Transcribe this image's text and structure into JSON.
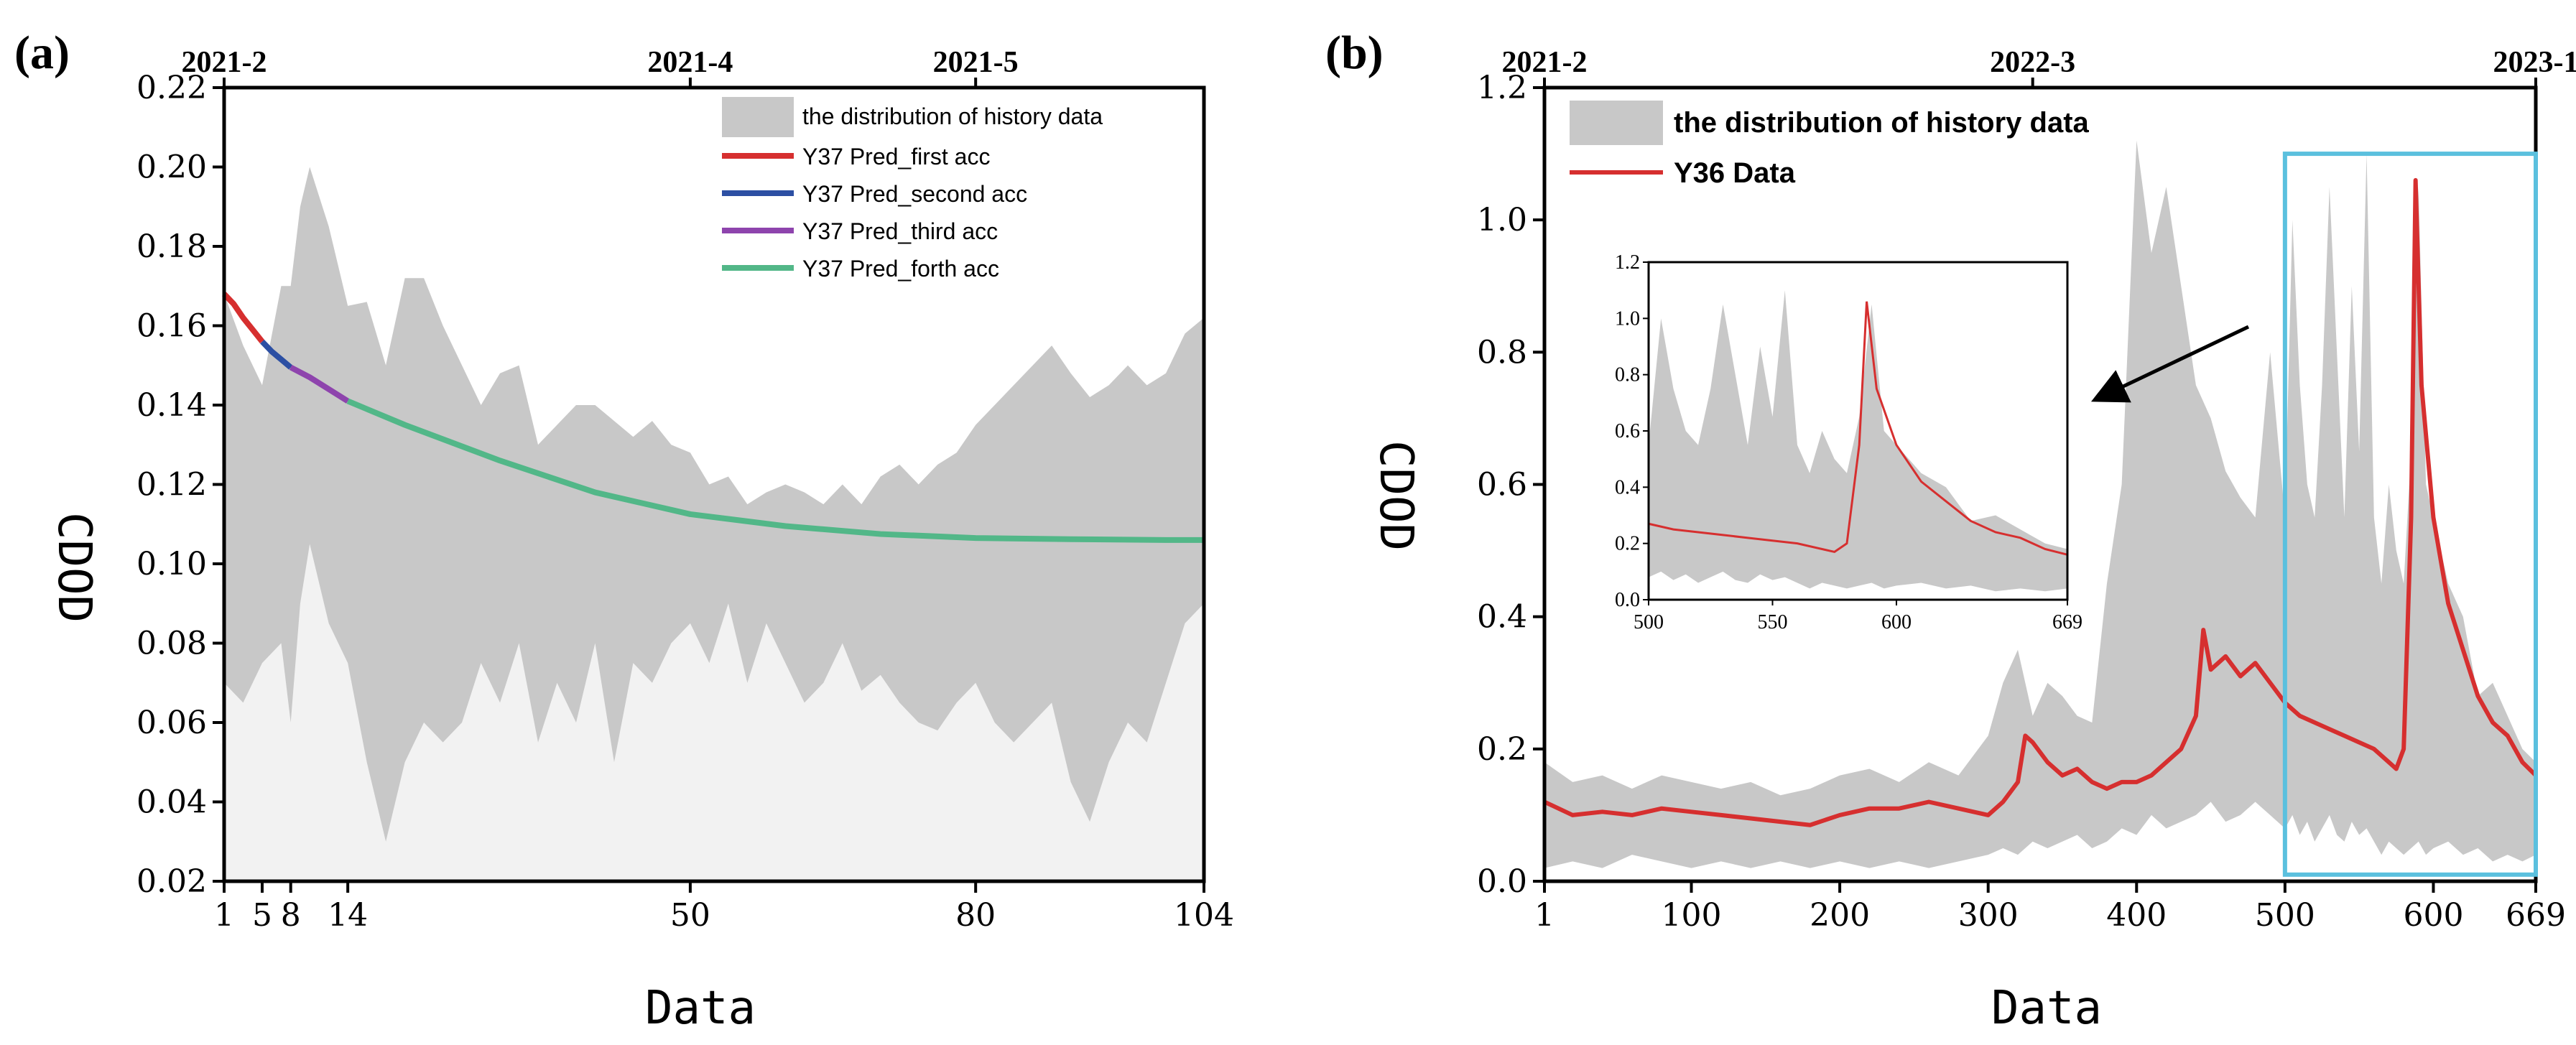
{
  "chart_data": [
    {
      "panel": "(a)",
      "type": "area",
      "xlabel": "Data",
      "ylabel": "CDOD",
      "xlim": [
        1,
        104
      ],
      "ylim": [
        0.02,
        0.22
      ],
      "x_ticks": [
        1,
        5,
        8,
        14,
        50,
        80,
        104
      ],
      "y_ticks": [
        "0.02",
        "0.04",
        "0.06",
        "0.08",
        "0.10",
        "0.12",
        "0.14",
        "0.16",
        "0.18",
        "0.20",
        "0.22"
      ],
      "top_ticks": [
        {
          "x": 1,
          "label": "2021-2"
        },
        {
          "x": 50,
          "label": "2021-4"
        },
        {
          "x": 80,
          "label": "2021-5"
        }
      ],
      "legend": {
        "position": "top-right",
        "entries": [
          {
            "label": "the distribution of history data",
            "color": "#c8c8c8",
            "kind": "patch"
          },
          {
            "label": "Y37 Pred_first acc",
            "color": "#d62f2f",
            "kind": "line"
          },
          {
            "label": "Y37 Pred_second acc",
            "color": "#2c4fa3",
            "kind": "line"
          },
          {
            "label": "Y37 Pred_third acc",
            "color": "#8e44ad",
            "kind": "line"
          },
          {
            "label": "Y37 Pred_forth acc",
            "color": "#52b788",
            "kind": "line"
          }
        ]
      },
      "distribution": {
        "x": [
          1,
          3,
          5,
          7,
          8,
          9,
          10,
          12,
          14,
          16,
          18,
          20,
          22,
          24,
          26,
          28,
          30,
          32,
          34,
          36,
          38,
          40,
          42,
          44,
          46,
          48,
          50,
          52,
          54,
          56,
          58,
          60,
          62,
          64,
          66,
          68,
          70,
          72,
          74,
          76,
          78,
          80,
          82,
          84,
          86,
          88,
          90,
          92,
          94,
          96,
          98,
          100,
          102,
          104
        ],
        "upper": [
          0.168,
          0.155,
          0.145,
          0.17,
          0.17,
          0.19,
          0.2,
          0.185,
          0.165,
          0.166,
          0.15,
          0.172,
          0.172,
          0.16,
          0.15,
          0.14,
          0.148,
          0.15,
          0.13,
          0.135,
          0.14,
          0.14,
          0.136,
          0.132,
          0.136,
          0.13,
          0.128,
          0.12,
          0.122,
          0.115,
          0.118,
          0.12,
          0.118,
          0.115,
          0.12,
          0.115,
          0.122,
          0.125,
          0.12,
          0.125,
          0.128,
          0.135,
          0.14,
          0.145,
          0.15,
          0.155,
          0.148,
          0.142,
          0.145,
          0.15,
          0.145,
          0.148,
          0.158,
          0.162
        ],
        "lower": [
          0.07,
          0.065,
          0.075,
          0.08,
          0.06,
          0.09,
          0.105,
          0.085,
          0.075,
          0.05,
          0.03,
          0.05,
          0.06,
          0.055,
          0.06,
          0.075,
          0.065,
          0.08,
          0.055,
          0.07,
          0.06,
          0.08,
          0.05,
          0.075,
          0.07,
          0.08,
          0.085,
          0.075,
          0.09,
          0.07,
          0.085,
          0.075,
          0.065,
          0.07,
          0.08,
          0.068,
          0.072,
          0.065,
          0.06,
          0.058,
          0.065,
          0.07,
          0.06,
          0.055,
          0.06,
          0.065,
          0.045,
          0.035,
          0.05,
          0.06,
          0.055,
          0.07,
          0.085,
          0.09
        ]
      },
      "series": [
        {
          "name": "Y37 Pred_first acc",
          "color": "#d62f2f",
          "x": [
            1,
            2,
            3,
            4,
            5
          ],
          "y": [
            0.168,
            0.1655,
            0.162,
            0.159,
            0.156
          ]
        },
        {
          "name": "Y37 Pred_second acc",
          "color": "#2c4fa3",
          "x": [
            5,
            6,
            7,
            8
          ],
          "y": [
            0.156,
            0.1535,
            0.1515,
            0.1495
          ]
        },
        {
          "name": "Y37 Pred_third acc",
          "color": "#8e44ad",
          "x": [
            8,
            10,
            12,
            14
          ],
          "y": [
            0.1495,
            0.147,
            0.144,
            0.141
          ]
        },
        {
          "name": "Y37 Pred_forth acc",
          "color": "#52b788",
          "x": [
            14,
            20,
            30,
            40,
            50,
            60,
            70,
            80,
            90,
            100,
            104
          ],
          "y": [
            0.141,
            0.135,
            0.126,
            0.118,
            0.1125,
            0.1095,
            0.1075,
            0.1065,
            0.1062,
            0.106,
            0.106
          ]
        }
      ]
    },
    {
      "panel": "(b)",
      "type": "area",
      "xlabel": "Data",
      "ylabel": "CDOD",
      "xlim": [
        1,
        669
      ],
      "ylim": [
        0.0,
        1.2
      ],
      "x_ticks": [
        1,
        100,
        200,
        300,
        400,
        500,
        600,
        669
      ],
      "y_ticks": [
        "0.0",
        "0.2",
        "0.4",
        "0.6",
        "0.8",
        "1.0",
        "1.2"
      ],
      "top_ticks": [
        {
          "x": 1,
          "label": "2021-2"
        },
        {
          "x": 330,
          "label": "2022-3"
        },
        {
          "x": 669,
          "label": "2023-1"
        }
      ],
      "legend": {
        "position": "top-left",
        "entries": [
          {
            "label": "the distribution of history data",
            "color": "#c8c8c8",
            "kind": "patch"
          },
          {
            "label": "Y36 Data",
            "color": "#d62f2f",
            "kind": "line"
          }
        ]
      },
      "highlight_box": {
        "x_range": [
          500,
          669
        ],
        "y_range": [
          0.01,
          1.1
        ],
        "color": "#5bc0de"
      },
      "distribution": {
        "x": [
          1,
          20,
          40,
          60,
          80,
          100,
          120,
          140,
          160,
          180,
          200,
          220,
          240,
          260,
          280,
          300,
          310,
          320,
          330,
          340,
          350,
          360,
          370,
          380,
          390,
          400,
          410,
          420,
          430,
          440,
          450,
          460,
          470,
          480,
          490,
          500,
          505,
          510,
          515,
          520,
          525,
          530,
          535,
          540,
          545,
          550,
          555,
          560,
          565,
          570,
          575,
          580,
          585,
          590,
          595,
          600,
          610,
          620,
          630,
          640,
          650,
          660,
          669
        ],
        "upper": [
          0.18,
          0.15,
          0.16,
          0.14,
          0.16,
          0.15,
          0.14,
          0.15,
          0.13,
          0.14,
          0.16,
          0.17,
          0.15,
          0.18,
          0.16,
          0.22,
          0.3,
          0.35,
          0.25,
          0.3,
          0.28,
          0.25,
          0.24,
          0.45,
          0.6,
          1.12,
          0.95,
          1.05,
          0.9,
          0.75,
          0.7,
          0.62,
          0.58,
          0.55,
          0.8,
          0.55,
          1.0,
          0.75,
          0.6,
          0.55,
          0.75,
          1.05,
          0.8,
          0.55,
          0.9,
          0.65,
          1.1,
          0.55,
          0.45,
          0.6,
          0.5,
          0.45,
          0.65,
          1.05,
          0.6,
          0.55,
          0.45,
          0.4,
          0.28,
          0.3,
          0.25,
          0.2,
          0.18
        ],
        "lower": [
          0.02,
          0.03,
          0.02,
          0.04,
          0.03,
          0.02,
          0.03,
          0.02,
          0.03,
          0.02,
          0.03,
          0.02,
          0.03,
          0.02,
          0.03,
          0.04,
          0.05,
          0.04,
          0.06,
          0.05,
          0.06,
          0.07,
          0.05,
          0.06,
          0.08,
          0.07,
          0.1,
          0.08,
          0.09,
          0.1,
          0.12,
          0.09,
          0.1,
          0.12,
          0.1,
          0.08,
          0.1,
          0.07,
          0.09,
          0.06,
          0.08,
          0.1,
          0.07,
          0.06,
          0.09,
          0.07,
          0.08,
          0.06,
          0.04,
          0.06,
          0.05,
          0.04,
          0.05,
          0.06,
          0.04,
          0.05,
          0.06,
          0.04,
          0.05,
          0.03,
          0.04,
          0.03,
          0.04
        ]
      },
      "series": [
        {
          "name": "Y36 Data",
          "color": "#d62f2f",
          "x": [
            1,
            20,
            40,
            60,
            80,
            100,
            120,
            140,
            160,
            180,
            200,
            220,
            240,
            260,
            280,
            300,
            310,
            320,
            325,
            330,
            340,
            350,
            360,
            370,
            380,
            390,
            400,
            410,
            420,
            430,
            440,
            445,
            450,
            460,
            470,
            480,
            490,
            500,
            510,
            520,
            530,
            540,
            550,
            560,
            570,
            575,
            580,
            585,
            588,
            592,
            600,
            610,
            620,
            630,
            640,
            650,
            660,
            669
          ],
          "y": [
            0.12,
            0.1,
            0.105,
            0.1,
            0.11,
            0.105,
            0.1,
            0.095,
            0.09,
            0.085,
            0.1,
            0.11,
            0.11,
            0.12,
            0.11,
            0.1,
            0.12,
            0.15,
            0.22,
            0.21,
            0.18,
            0.16,
            0.17,
            0.15,
            0.14,
            0.15,
            0.15,
            0.16,
            0.18,
            0.2,
            0.25,
            0.38,
            0.32,
            0.34,
            0.31,
            0.33,
            0.3,
            0.27,
            0.25,
            0.24,
            0.23,
            0.22,
            0.21,
            0.2,
            0.18,
            0.17,
            0.2,
            0.55,
            1.06,
            0.75,
            0.55,
            0.42,
            0.35,
            0.28,
            0.24,
            0.22,
            0.18,
            0.16
          ]
        }
      ],
      "inset": {
        "xlim": [
          500,
          669
        ],
        "ylim": [
          0.0,
          1.2
        ],
        "x_ticks": [
          500,
          550,
          600,
          669
        ],
        "y_ticks": [
          "0.0",
          "0.2",
          "0.4",
          "0.6",
          "0.8",
          "1.0",
          "1.2"
        ]
      }
    }
  ]
}
